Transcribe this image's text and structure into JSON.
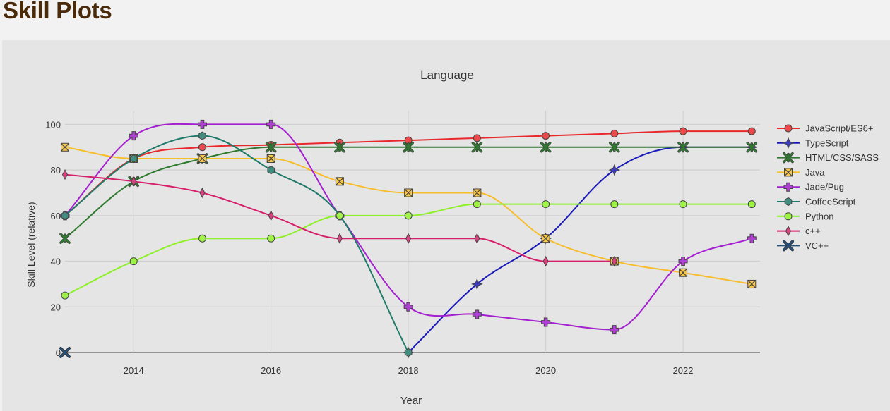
{
  "page": {
    "heading": "Skill Plots"
  },
  "chart_data": {
    "type": "line",
    "title": "Language",
    "xlabel": "Year",
    "ylabel": "Skill Level (relative)",
    "xlim": [
      2013,
      2023.1
    ],
    "ylim": [
      0,
      106
    ],
    "x_ticks": [
      2014,
      2016,
      2018,
      2020,
      2022
    ],
    "y_ticks": [
      0,
      20,
      40,
      60,
      80,
      100
    ],
    "grid": true,
    "legend_position": "right",
    "series": [
      {
        "name": "JavaScript/ES6+",
        "color": "#e8282a",
        "marker": "circle",
        "x": [
          2013,
          2014,
          2015,
          2016,
          2017,
          2018,
          2019,
          2020,
          2021,
          2022,
          2023
        ],
        "y": [
          60,
          85,
          90,
          91,
          92,
          93,
          94,
          95,
          96,
          97,
          97
        ]
      },
      {
        "name": "TypeScript",
        "color": "#1a1ab8",
        "marker": "star4",
        "x": [
          2018,
          2019,
          2020,
          2021,
          2022,
          2023
        ],
        "y": [
          0,
          30,
          50,
          80,
          90,
          90
        ]
      },
      {
        "name": "HTML/CSS/SASS",
        "color": "#2e7a2e",
        "marker": "asterisk",
        "x": [
          2013,
          2014,
          2015,
          2016,
          2017,
          2018,
          2019,
          2020,
          2021,
          2022,
          2023
        ],
        "y": [
          50,
          75,
          85,
          90,
          90,
          90,
          90,
          90,
          90,
          90,
          90
        ]
      },
      {
        "name": "Java",
        "color": "#f7bd2b",
        "marker": "x-box",
        "x": [
          2013,
          2014,
          2015,
          2016,
          2017,
          2018,
          2019,
          2020,
          2021,
          2022,
          2023
        ],
        "y": [
          90,
          85,
          85,
          85,
          75,
          70,
          70,
          50,
          40,
          35,
          30
        ]
      },
      {
        "name": "Jade/Pug",
        "color": "#a31fcf",
        "marker": "cross",
        "x": [
          2013,
          2014,
          2015,
          2016,
          2017,
          2018,
          2019,
          2020,
          2021,
          2022,
          2023
        ],
        "y": [
          60,
          95,
          100,
          100,
          60,
          20,
          16.7,
          13.3,
          10,
          40,
          50
        ]
      },
      {
        "name": "CoffeeScript",
        "color": "#1f7a6a",
        "marker": "hexagon",
        "x": [
          2013,
          2014,
          2015,
          2016,
          2017,
          2018
        ],
        "y": [
          60,
          85,
          95,
          80,
          60,
          0
        ]
      },
      {
        "name": "Python",
        "color": "#8ef026",
        "marker": "circle",
        "x": [
          2013,
          2014,
          2015,
          2016,
          2017,
          2018,
          2019,
          2020,
          2021,
          2022,
          2023
        ],
        "y": [
          25,
          40,
          50,
          50,
          60,
          60,
          65,
          65,
          65,
          65,
          65
        ]
      },
      {
        "name": "c++",
        "color": "#d61f6a",
        "marker": "diamond-tall",
        "x": [
          2013,
          2014,
          2015,
          2016,
          2017,
          2018,
          2019,
          2020,
          2021
        ],
        "y": [
          78,
          75,
          70,
          60,
          50,
          50,
          50,
          40,
          40
        ]
      },
      {
        "name": "VC++",
        "color": "#26507a",
        "marker": "x",
        "x": [
          2013
        ],
        "y": [
          0
        ]
      }
    ]
  }
}
